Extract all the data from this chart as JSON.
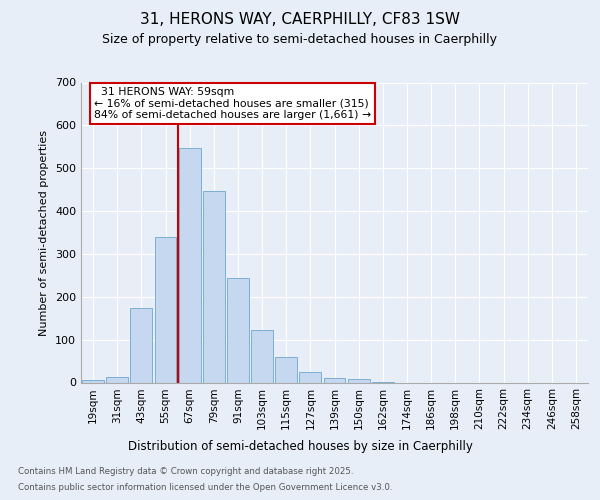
{
  "title1": "31, HERONS WAY, CAERPHILLY, CF83 1SW",
  "title2": "Size of property relative to semi-detached houses in Caerphilly",
  "xlabel": "Distribution of semi-detached houses by size in Caerphilly",
  "ylabel": "Number of semi-detached properties",
  "bar_categories": [
    "19sqm",
    "31sqm",
    "43sqm",
    "55sqm",
    "67sqm",
    "79sqm",
    "91sqm",
    "103sqm",
    "115sqm",
    "127sqm",
    "139sqm",
    "150sqm",
    "162sqm",
    "174sqm",
    "186sqm",
    "198sqm",
    "210sqm",
    "222sqm",
    "234sqm",
    "246sqm",
    "258sqm"
  ],
  "bar_values": [
    5,
    12,
    175,
    340,
    547,
    448,
    243,
    122,
    60,
    24,
    11,
    8,
    1,
    0,
    0,
    0,
    0,
    0,
    0,
    0,
    0
  ],
  "bar_color": "#c5d8f0",
  "bar_edge_color": "#7bafd4",
  "property_sqm": 59,
  "property_label": "31 HERONS WAY: 59sqm",
  "pct_smaller": 16,
  "pct_larger": 84,
  "count_smaller": 315,
  "count_larger": 1661,
  "annotation_box_color": "#cc0000",
  "line_color": "#cc0000",
  "ylim": [
    0,
    700
  ],
  "yticks": [
    0,
    100,
    200,
    300,
    400,
    500,
    600,
    700
  ],
  "footer1": "Contains HM Land Registry data © Crown copyright and database right 2025.",
  "footer2": "Contains public sector information licensed under the Open Government Licence v3.0.",
  "bg_color": "#e8eef8",
  "plot_bg_color": "#e8eef8",
  "grid_color": "#ffffff"
}
